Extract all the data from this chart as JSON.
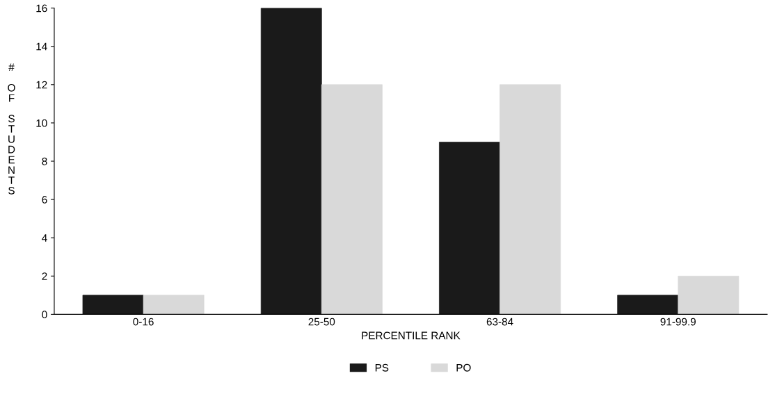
{
  "chart_data": {
    "type": "bar",
    "xlabel": "PERCENTILE RANK",
    "ylabel": "# OF STUDENTS",
    "categories": [
      "0-16",
      "25-50",
      "63-84",
      "91-99.9"
    ],
    "series": [
      {
        "name": "PS",
        "color": "#1a1a1a",
        "values": [
          1,
          16,
          9,
          1
        ]
      },
      {
        "name": "PO",
        "color": "#d9d9d9",
        "values": [
          1,
          12,
          12,
          2
        ]
      }
    ],
    "ylim": [
      0,
      16
    ],
    "yticks": [
      0,
      2,
      4,
      6,
      8,
      10,
      12,
      14,
      16
    ],
    "grid": false,
    "legend": "bottom"
  }
}
